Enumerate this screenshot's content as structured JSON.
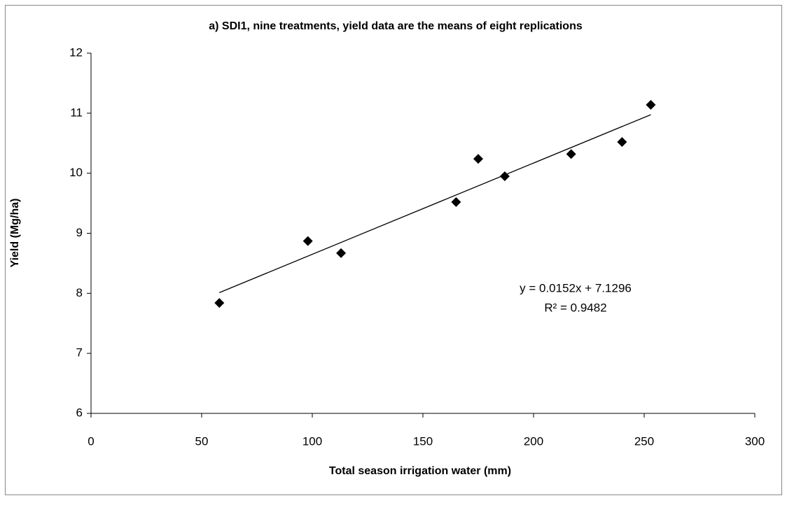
{
  "chart_data": {
    "type": "scatter",
    "title": "a)  SDI1, nine treatments, yield data are the means of eight replications",
    "x_label": "Total season  irrigation water (mm)",
    "y_label": "Yield  (Mg/ha)",
    "x": [
      58,
      98,
      113,
      165,
      175,
      187,
      217,
      240,
      253
    ],
    "values": [
      7.84,
      8.87,
      8.67,
      9.52,
      10.24,
      9.95,
      10.32,
      10.52,
      11.14
    ],
    "color": "#000000",
    "xlim": [
      0,
      300
    ],
    "xticks": [
      0,
      50,
      100,
      150,
      200,
      250,
      300
    ],
    "ylim": [
      6,
      12
    ],
    "yticks": [
      6,
      7,
      8,
      9,
      10,
      11,
      12
    ],
    "grid": false,
    "trendline": {
      "slope": 0.0152,
      "intercept": 7.1296,
      "equation": "y = 0.0152x + 7.1296",
      "r_squared": "R² = 0.9482"
    }
  }
}
